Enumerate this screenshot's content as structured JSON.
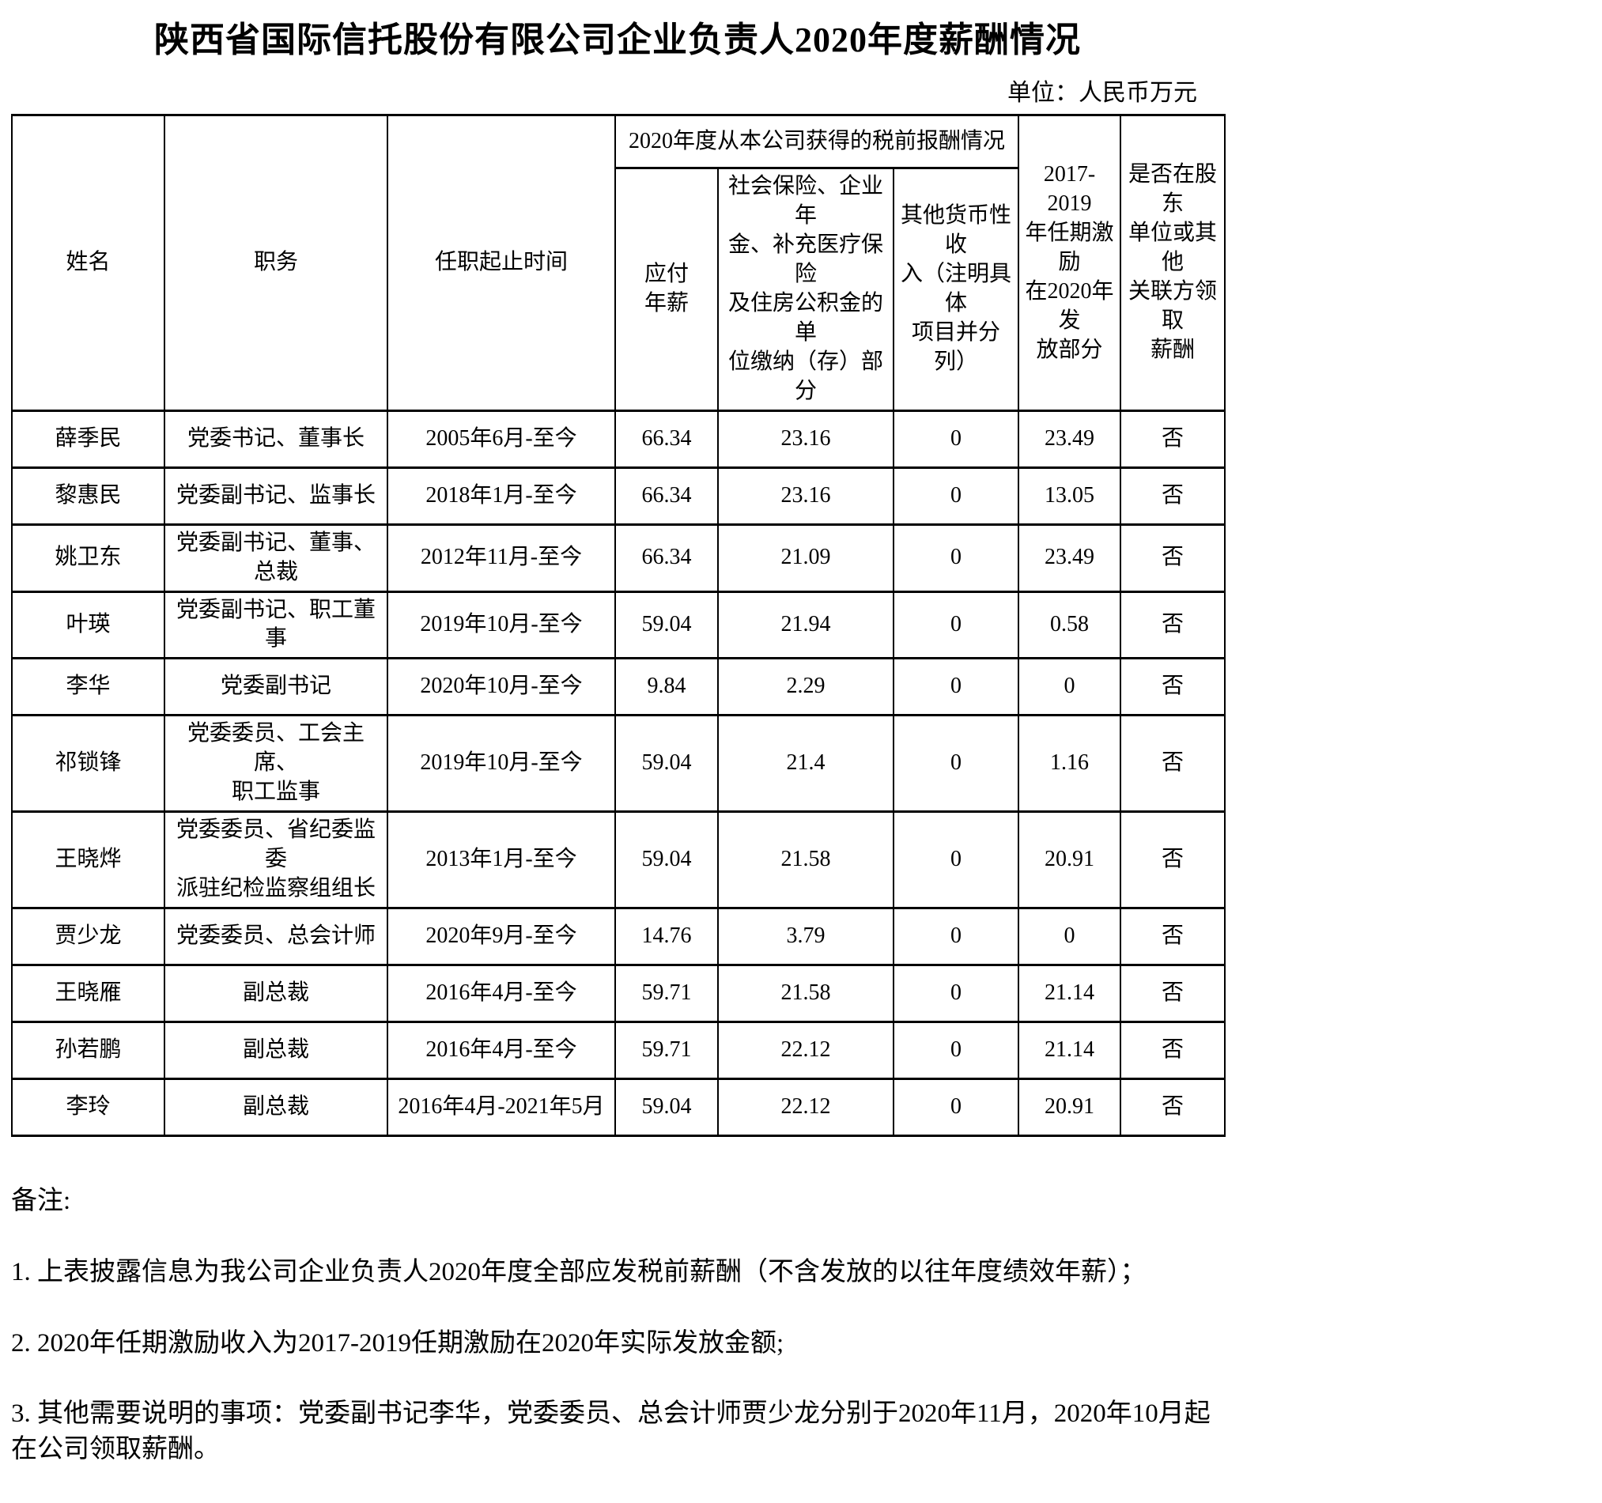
{
  "page": {
    "title": "陕西省国际信托股份有限公司企业负责人2020年度薪酬情况",
    "unit_label": "单位：人民币万元"
  },
  "table": {
    "headers": {
      "name": "姓名",
      "position": "职务",
      "term": "任职起止时间",
      "pretax_group": "2020年度从本公司获得的税前报酬情况",
      "payable_salary": "应付\n年薪",
      "social_insurance": "社会保险、企业年\n金、补充医疗保险\n及住房公积金的单\n位缴纳（存）部分",
      "other_income": "其他货币性收\n入（注明具体\n项目并分列）",
      "incentive": "2017-2019\n年任期激励\n在2020年发\n放部分",
      "shareholder": "是否在股东\n单位或其他\n关联方领取\n薪酬"
    },
    "rows": [
      {
        "name": "薛季民",
        "position": "党委书记、董事长",
        "term": "2005年6月-至今",
        "salary": "66.34",
        "insurance": "23.16",
        "other": "0",
        "incentive": "23.49",
        "shareholder": "否"
      },
      {
        "name": "黎惠民",
        "position": "党委副书记、监事长",
        "term": "2018年1月-至今",
        "salary": "66.34",
        "insurance": "23.16",
        "other": "0",
        "incentive": "13.05",
        "shareholder": "否"
      },
      {
        "name": "姚卫东",
        "position": "党委副书记、董事、\n总裁",
        "term": "2012年11月-至今",
        "salary": "66.34",
        "insurance": "21.09",
        "other": "0",
        "incentive": "23.49",
        "shareholder": "否"
      },
      {
        "name": "叶瑛",
        "position": "党委副书记、职工董事",
        "term": "2019年10月-至今",
        "salary": "59.04",
        "insurance": "21.94",
        "other": "0",
        "incentive": "0.58",
        "shareholder": "否"
      },
      {
        "name": "李华",
        "position": "党委副书记",
        "term": "2020年10月-至今",
        "salary": "9.84",
        "insurance": "2.29",
        "other": "0",
        "incentive": "0",
        "shareholder": "否"
      },
      {
        "name": "祁锁锋",
        "position": "党委委员、工会主席、\n职工监事",
        "term": "2019年10月-至今",
        "salary": "59.04",
        "insurance": "21.4",
        "other": "0",
        "incentive": "1.16",
        "shareholder": "否"
      },
      {
        "name": "王晓烨",
        "position": "党委委员、省纪委监委\n派驻纪检监察组组长",
        "term": "2013年1月-至今",
        "salary": "59.04",
        "insurance": "21.58",
        "other": "0",
        "incentive": "20.91",
        "shareholder": "否"
      },
      {
        "name": "贾少龙",
        "position": "党委委员、总会计师",
        "term": "2020年9月-至今",
        "salary": "14.76",
        "insurance": "3.79",
        "other": "0",
        "incentive": "0",
        "shareholder": "否"
      },
      {
        "name": "王晓雁",
        "position": "副总裁",
        "term": "2016年4月-至今",
        "salary": "59.71",
        "insurance": "21.58",
        "other": "0",
        "incentive": "21.14",
        "shareholder": "否"
      },
      {
        "name": "孙若鹏",
        "position": "副总裁",
        "term": "2016年4月-至今",
        "salary": "59.71",
        "insurance": "22.12",
        "other": "0",
        "incentive": "21.14",
        "shareholder": "否"
      },
      {
        "name": "李玲",
        "position": "副总裁",
        "term": "2016年4月-2021年5月",
        "salary": "59.04",
        "insurance": "22.12",
        "other": "0",
        "incentive": "20.91",
        "shareholder": "否"
      }
    ]
  },
  "notes": {
    "label": "备注:",
    "items": [
      "1. 上表披露信息为我公司企业负责人2020年度全部应发税前薪酬（不含发放的以往年度绩效年薪）；",
      "2. 2020年任期激励收入为2017-2019任期激励在2020年实际发放金额;",
      "3. 其他需要说明的事项：党委副书记李华，党委委员、总会计师贾少龙分别于2020年11月，2020年10月起\n在公司领取薪酬。"
    ]
  }
}
